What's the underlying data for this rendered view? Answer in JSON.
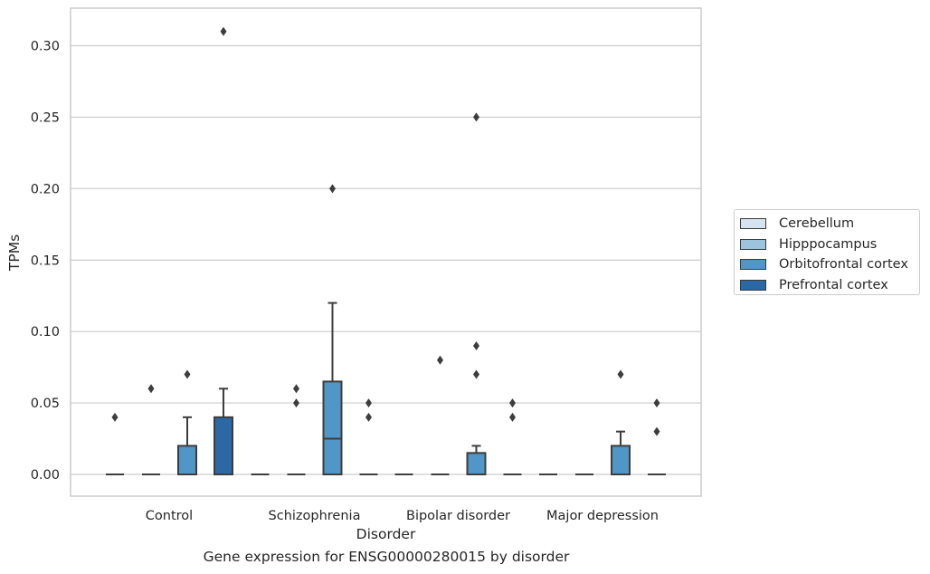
{
  "caption": "Gene expression for ENSG00000280015 by disorder",
  "chart_data": {
    "type": "boxplot",
    "title": "",
    "xlabel": "Disorder",
    "ylabel": "TPMs",
    "ylim": [
      -0.015,
      0.325
    ],
    "yticks": [
      0.0,
      0.05,
      0.1,
      0.15,
      0.2,
      0.25,
      0.3
    ],
    "ytick_labels": [
      "0.00",
      "0.05",
      "0.10",
      "0.15",
      "0.20",
      "0.25",
      "0.30"
    ],
    "grid": "horizontal",
    "legend_position": "right",
    "categories": [
      "Control",
      "Schizophrenia",
      "Bipolar disorder",
      "Major depression"
    ],
    "series": [
      {
        "name": "Cerebellum",
        "color": "#d6e3f0",
        "boxes": [
          {
            "q1": 0,
            "median": 0,
            "q3": 0,
            "whisker_low": 0,
            "whisker_high": 0,
            "outliers": [
              0.04
            ]
          },
          {
            "q1": 0,
            "median": 0,
            "q3": 0,
            "whisker_low": 0,
            "whisker_high": 0,
            "outliers": []
          },
          {
            "q1": 0,
            "median": 0,
            "q3": 0,
            "whisker_low": 0,
            "whisker_high": 0,
            "outliers": []
          },
          {
            "q1": 0,
            "median": 0,
            "q3": 0,
            "whisker_low": 0,
            "whisker_high": 0,
            "outliers": []
          }
        ]
      },
      {
        "name": "Hipppocampus",
        "color": "#9cc5dd",
        "boxes": [
          {
            "q1": 0,
            "median": 0,
            "q3": 0,
            "whisker_low": 0,
            "whisker_high": 0,
            "outliers": [
              0.06
            ]
          },
          {
            "q1": 0,
            "median": 0,
            "q3": 0,
            "whisker_low": 0,
            "whisker_high": 0,
            "outliers": [
              0.05,
              0.06
            ]
          },
          {
            "q1": 0,
            "median": 0,
            "q3": 0,
            "whisker_low": 0,
            "whisker_high": 0,
            "outliers": [
              0.08
            ]
          },
          {
            "q1": 0,
            "median": 0,
            "q3": 0,
            "whisker_low": 0,
            "whisker_high": 0,
            "outliers": []
          }
        ]
      },
      {
        "name": "Orbitofrontal cortex",
        "color": "#5096c6",
        "boxes": [
          {
            "q1": 0,
            "median": 0,
            "q3": 0.02,
            "whisker_low": 0,
            "whisker_high": 0.04,
            "outliers": [
              0.07
            ]
          },
          {
            "q1": 0,
            "median": 0.025,
            "q3": 0.065,
            "whisker_low": 0,
            "whisker_high": 0.12,
            "outliers": [
              0.2
            ]
          },
          {
            "q1": 0,
            "median": 0,
            "q3": 0.015,
            "whisker_low": 0,
            "whisker_high": 0.02,
            "outliers": [
              0.07,
              0.09,
              0.25
            ]
          },
          {
            "q1": 0,
            "median": 0,
            "q3": 0.02,
            "whisker_low": 0,
            "whisker_high": 0.03,
            "outliers": [
              0.07
            ]
          }
        ]
      },
      {
        "name": "Prefrontal cortex",
        "color": "#2b69a6",
        "boxes": [
          {
            "q1": 0,
            "median": 0,
            "q3": 0.04,
            "whisker_low": 0,
            "whisker_high": 0.06,
            "outliers": [
              0.31
            ]
          },
          {
            "q1": 0,
            "median": 0,
            "q3": 0,
            "whisker_low": 0,
            "whisker_high": 0,
            "outliers": [
              0.04,
              0.05
            ]
          },
          {
            "q1": 0,
            "median": 0,
            "q3": 0,
            "whisker_low": 0,
            "whisker_high": 0,
            "outliers": [
              0.04,
              0.05
            ]
          },
          {
            "q1": 0,
            "median": 0,
            "q3": 0,
            "whisker_low": 0,
            "whisker_high": 0,
            "outliers": [
              0.03,
              0.05
            ]
          }
        ]
      }
    ]
  }
}
